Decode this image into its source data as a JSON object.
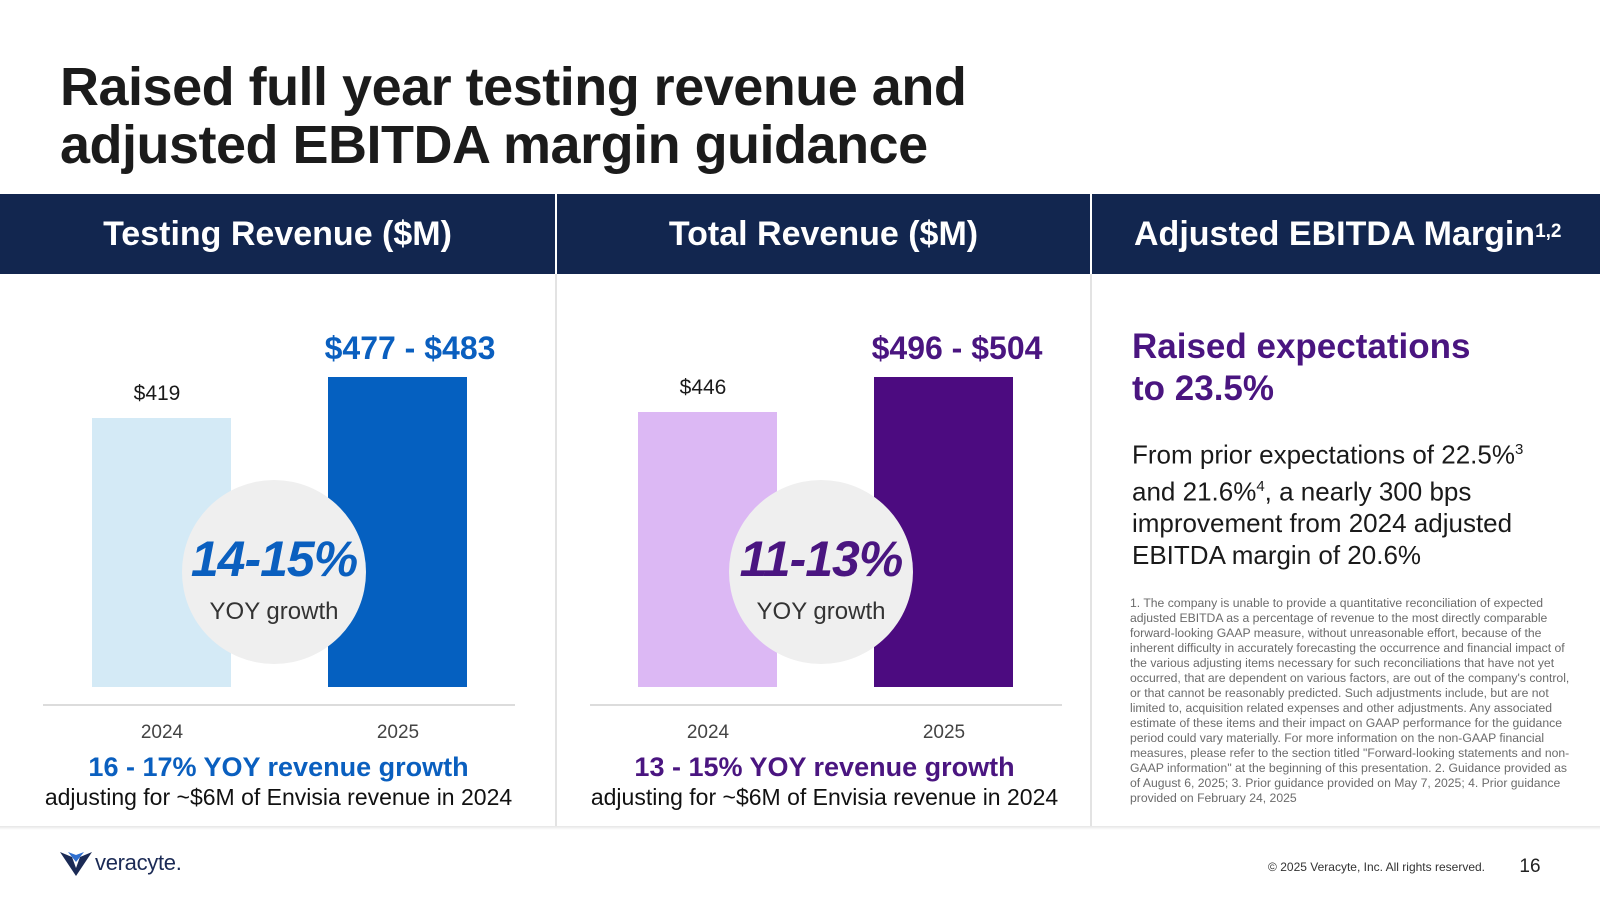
{
  "slide": {
    "title_line1": "Raised full year testing revenue and",
    "title_line2": "adjusted EBITDA margin guidance",
    "page_number": "16",
    "copyright": "© 2025 Veracyte, Inc. All rights reserved.",
    "logo_text": "veracyte.",
    "logo_icon": "veracyte-chevron-icon"
  },
  "colors": {
    "navy": "#12264f",
    "testing_2024": "#d4eaf6",
    "testing_2025": "#0560c0",
    "testing_text": "#0a5fbf",
    "total_2024": "#dcb8f4",
    "total_2025": "#4c0b80",
    "total_text": "#4a1580"
  },
  "headers": {
    "testing": "Testing Revenue ($M)",
    "total": "Total Revenue ($M)",
    "ebitda": "Adjusted EBITDA Margin",
    "ebitda_sup": "1,2"
  },
  "chart_data": [
    {
      "type": "bar",
      "title": "Testing Revenue ($M)",
      "categories": [
        "2024",
        "2025"
      ],
      "values": [
        419,
        483
      ],
      "value_labels": [
        "$419",
        "$477 - $483"
      ],
      "ylim": [
        0,
        530
      ],
      "growth_badge": "14-15%",
      "growth_badge_caption": "YOY growth",
      "growth_note": "16 - 17% YOY revenue growth",
      "adjust_note": "adjusting for ~$6M of Envisia revenue in 2024"
    },
    {
      "type": "bar",
      "title": "Total Revenue ($M)",
      "categories": [
        "2024",
        "2025"
      ],
      "values": [
        446,
        504
      ],
      "value_labels": [
        "$446",
        "$496 - $504"
      ],
      "ylim": [
        0,
        552
      ],
      "growth_badge": "11-13%",
      "growth_badge_caption": "YOY growth",
      "growth_note": "13 - 15% YOY revenue growth",
      "adjust_note": "adjusting for ~$6M of Envisia revenue in 2024"
    }
  ],
  "ebitda": {
    "raised_line1": "Raised expectations",
    "raised_line2": "to 23.5%",
    "from_a": "From prior expectations of 22.5%",
    "from_sup3": "3",
    "from_b": " and 21.6%",
    "from_sup4": "4",
    "from_c": ", a nearly 300 bps improvement from 2024 adjusted EBITDA margin of 20.6%",
    "footnote": "1. The company is unable to provide a quantitative reconciliation of expected adjusted EBITDA as a percentage of revenue to the most directly comparable forward-looking GAAP measure, without unreasonable effort, because of the inherent difficulty in accurately forecasting the occurrence and financial impact of the various adjusting items necessary for such reconciliations that have not yet occurred, that are dependent on various factors, are out of the company's control, or that cannot be reasonably predicted. Such adjustments include, but are not limited to, acquisition related expenses and other adjustments. Any associated estimate of these items and their impact on GAAP performance for the guidance period could vary materially. For more information on the non-GAAP financial measures, please refer to the section titled \"Forward-looking statements and non-GAAP information\" at the beginning of this presentation. 2. Guidance provided as of August 6, 2025; 3. Prior guidance provided on May 7, 2025; 4. Prior guidance provided on February 24, 2025"
  }
}
